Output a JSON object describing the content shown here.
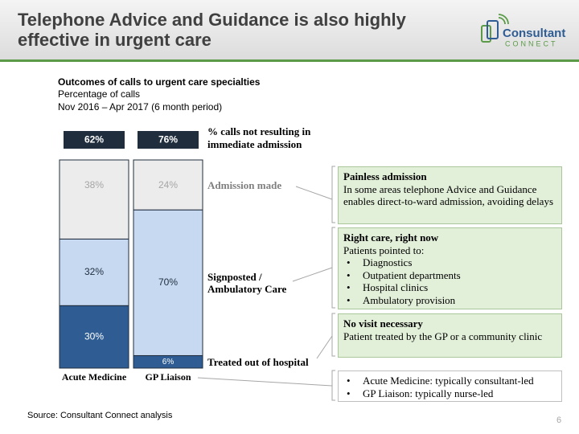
{
  "header": {
    "title_lines": [
      "Telephone Advice and Guidance is also highly",
      "effective in urgent care"
    ],
    "logo": {
      "name": "Consultant",
      "tagline": "CONNECT"
    }
  },
  "chart_data": {
    "type": "stacked_bar",
    "title": "Outcomes of calls to urgent care specialties",
    "subtitle_lines": [
      "Percentage of calls",
      "Nov 2016 – Apr 2017 (6 month period)"
    ],
    "categories": [
      "Acute Medicine",
      "GP Liaison"
    ],
    "series": [
      {
        "name_lines": [
          "Treated out of hospital"
        ],
        "color": "#2f5d93",
        "label_color": "#ffffff",
        "values": [
          30,
          6
        ],
        "value_labels": [
          "30%",
          "6%"
        ]
      },
      {
        "name_lines": [
          "Signposted /",
          "Ambulatory Care"
        ],
        "color": "#c6d9f1",
        "label_color": "#1f2d3d",
        "values": [
          32,
          70
        ],
        "value_labels": [
          "32%",
          "70%"
        ]
      },
      {
        "name_lines": [
          "Admission made"
        ],
        "color": "#ececec",
        "label_color": "#a6a6a6",
        "values": [
          38,
          24
        ],
        "value_labels": [
          "38%",
          "24%"
        ]
      }
    ],
    "totals": {
      "label_lines": [
        "% calls not resulting in",
        "immediate admission"
      ],
      "values": [
        62,
        76
      ],
      "value_labels": [
        "62%",
        "76%"
      ]
    }
  },
  "callouts": [
    {
      "title": "Painless admission",
      "body": "In some areas telephone Advice and Guidance enables direct-to-ward admission, avoiding delays"
    },
    {
      "title": "Right care, right now",
      "body": "Patients pointed to:",
      "bullets": [
        "Diagnostics",
        "Outpatient departments",
        "Hospital clinics",
        "Ambulatory provision"
      ]
    },
    {
      "title": "No visit necessary",
      "body": "Patient treated by the GP or a community clinic"
    },
    {
      "bullets": [
        "Acute Medicine: typically consultant-led",
        "GP Liaison: typically nurse-led"
      ]
    }
  ],
  "footer": {
    "source": "Source: Consultant Connect analysis",
    "page": "6"
  }
}
